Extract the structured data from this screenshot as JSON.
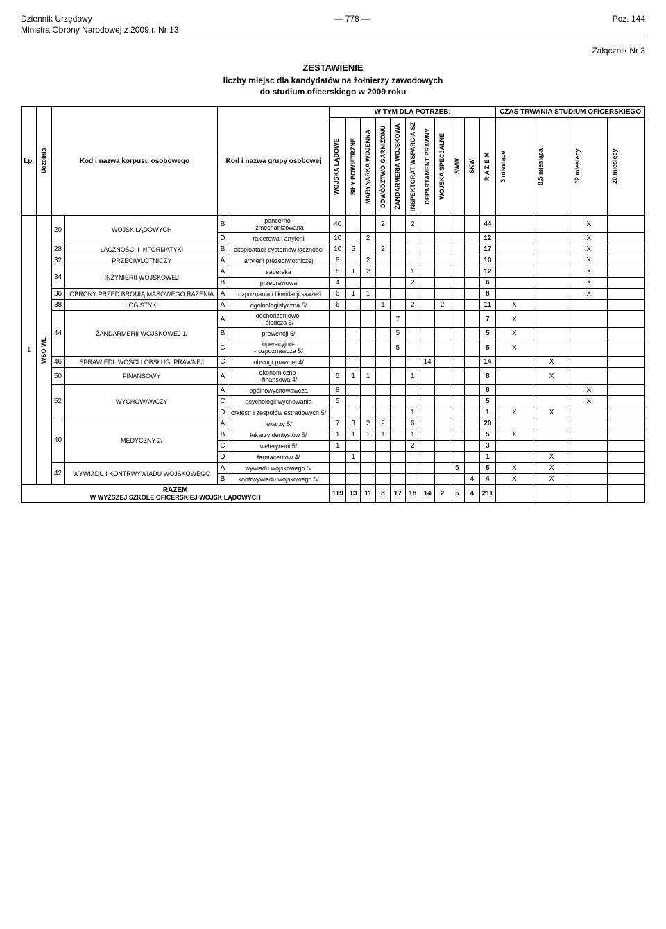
{
  "header": {
    "left1": "Dziennik Urzędowy",
    "left2": "Ministra Obrony Narodowej z 2009 r. Nr 13",
    "center": "— 778 —",
    "right": "Poz. 144"
  },
  "attachment": "Załącznik Nr 3",
  "title": "ZESTAWIENIE",
  "subtitle1": "liczby miejsc dla kandydatów na żołnierzy zawodowych",
  "subtitle2": "do studium oficerskiego w  2009 roku",
  "group_header1": "W  TYM  DLA  POTRZEB:",
  "group_header2": "CZAS TRWANIA STUDIUM OFICERSKIEGO",
  "col_labels": {
    "lp": "Lp.",
    "uczelnia": "Uczelnia",
    "korpus": "Kod i nazwa korpusu osobowego",
    "grupa": "Kod i nazwa grupy osobowej",
    "c1": "WOJSKA LĄDOWE",
    "c2": "SIŁY POWIETRZNE",
    "c3": "MARYNARKA WOJENNA",
    "c4": "DOWÓDZTWO GARNIZONU",
    "c5": "ŻANDARMERIA WOJSKOWA",
    "c6": "INSPEKTORAT WSPARCIA SZ",
    "c7": "DEPARTAMENT PRAWNY",
    "c8": "WOJSKA SPECJALNE",
    "c9": "SWW",
    "c10": "SKW",
    "c11": "R A Z E M",
    "d1": "3 miesiące",
    "d2": "8,5 miesiąca",
    "d3": "12 miesięcy",
    "d4": "20 miesięcy"
  },
  "lp_val": "1",
  "uczelnia_val": "WSO WL",
  "rows": [
    {
      "kcode": "20",
      "kname": "WOJSK LĄDOWYCH",
      "krows": 2,
      "gcode": "B",
      "gname": "pancerno-\n-zmechanizowana",
      "v": [
        "40",
        "",
        "",
        "2",
        "",
        "2",
        "",
        "",
        "",
        "",
        "44",
        "",
        "",
        "X",
        ""
      ]
    },
    {
      "gcode": "D",
      "gname": "rakietowa i artylerii",
      "v": [
        "10",
        "",
        "2",
        "",
        "",
        "",
        "",
        "",
        "",
        "",
        "12",
        "",
        "",
        "X",
        ""
      ]
    },
    {
      "kcode": "28",
      "kname": "ŁĄCZNOŚCI I INFORMATYKI",
      "krows": 1,
      "gcode": "B",
      "gname": "eksploatacji systemów łączności",
      "v": [
        "10",
        "5",
        "",
        "2",
        "",
        "",
        "",
        "",
        "",
        "",
        "17",
        "",
        "",
        "X",
        ""
      ]
    },
    {
      "kcode": "32",
      "kname": "PRZECIWLOTNICZY",
      "krows": 1,
      "gcode": "A",
      "gname": "artylerii prezeciwlotniczej",
      "v": [
        "8",
        "",
        "2",
        "",
        "",
        "",
        "",
        "",
        "",
        "",
        "10",
        "",
        "",
        "X",
        ""
      ]
    },
    {
      "kcode": "34",
      "kname": "INŻYNIERII WOJSKOWEJ",
      "krows": 2,
      "gcode": "A",
      "gname": "saperska",
      "v": [
        "8",
        "1",
        "2",
        "",
        "",
        "1",
        "",
        "",
        "",
        "",
        "12",
        "",
        "",
        "X",
        ""
      ]
    },
    {
      "gcode": "B",
      "gname": "przeprawowa",
      "v": [
        "4",
        "",
        "",
        "",
        "",
        "2",
        "",
        "",
        "",
        "",
        "6",
        "",
        "",
        "X",
        ""
      ]
    },
    {
      "kcode": "36",
      "kname": "OBRONY PRZED BRONIĄ MASOWEGO RAŻENIA",
      "krows": 1,
      "gcode": "A",
      "gname": "rozpoznania i likwidacji skażeń",
      "v": [
        "6",
        "1",
        "1",
        "",
        "",
        "",
        "",
        "",
        "",
        "",
        "8",
        "",
        "",
        "X",
        ""
      ]
    },
    {
      "kcode": "38",
      "kname": "LOGISTYKI",
      "krows": 1,
      "gcode": "A",
      "gname": "ogólnologistyczna  5/",
      "v": [
        "6",
        "",
        "",
        "1",
        "",
        "2",
        "",
        "2",
        "",
        "",
        "11",
        "X",
        "",
        "",
        ""
      ]
    },
    {
      "kcode": "44",
      "kname": "ŻANDARMERII WOJSKOWEJ 1/",
      "krows": 3,
      "gcode": "A",
      "gname": "dochodzeniowo-\n-śledcza  5/",
      "v": [
        "",
        "",
        "",
        "",
        "7",
        "",
        "",
        "",
        "",
        "",
        "7",
        "X",
        "",
        "",
        ""
      ]
    },
    {
      "gcode": "B",
      "gname": "prewencji  5/",
      "v": [
        "",
        "",
        "",
        "",
        "5",
        "",
        "",
        "",
        "",
        "",
        "5",
        "X",
        "",
        "",
        ""
      ]
    },
    {
      "gcode": "C",
      "gname": "operacyjno-\n-rozpoznawcza  5/",
      "v": [
        "",
        "",
        "",
        "",
        "5",
        "",
        "",
        "",
        "",
        "",
        "5",
        "X",
        "",
        "",
        ""
      ]
    },
    {
      "kcode": "46",
      "kname": "SPRAWIEDLIWOŚCI I OBSŁUGI PRAWNEJ",
      "krows": 1,
      "gcode": "C",
      "gname": "obsługi prawnej  4/",
      "v": [
        "",
        "",
        "",
        "",
        "",
        "",
        "14",
        "",
        "",
        "",
        "14",
        "",
        "X",
        "",
        ""
      ]
    },
    {
      "kcode": "50",
      "kname": "FINANSOWY",
      "krows": 1,
      "gcode": "A",
      "gname": "ekonomiczno-\n-finansowa  4/",
      "v": [
        "5",
        "1",
        "1",
        "",
        "",
        "1",
        "",
        "",
        "",
        "",
        "8",
        "",
        "X",
        "",
        ""
      ]
    },
    {
      "kcode": "52",
      "kname": "WYCHOWAWCZY",
      "krows": 3,
      "gcode": "A",
      "gname": "ogólnowychowawcza",
      "v": [
        "8",
        "",
        "",
        "",
        "",
        "",
        "",
        "",
        "",
        "",
        "8",
        "",
        "",
        "X",
        ""
      ]
    },
    {
      "gcode": "C",
      "gname": "psychologii wychowania",
      "v": [
        "5",
        "",
        "",
        "",
        "",
        "",
        "",
        "",
        "",
        "",
        "5",
        "",
        "",
        "X",
        ""
      ]
    },
    {
      "gcode": "D",
      "gname": "orkiestr i zespołów estradowych  5/",
      "v": [
        "",
        "",
        "",
        "",
        "",
        "1",
        "",
        "",
        "",
        "",
        "1",
        "X",
        "X",
        "",
        ""
      ]
    },
    {
      "kcode": "40",
      "kname": "MEDYCZNY 2/",
      "krows": 4,
      "gcode": "A",
      "gname": "lekarzy 5/",
      "v": [
        "7",
        "3",
        "2",
        "2",
        "",
        "6",
        "",
        "",
        "",
        "",
        "20",
        "",
        "",
        "",
        ""
      ]
    },
    {
      "gcode": "B",
      "gname": "lekarzy dentystów  5/",
      "v": [
        "1",
        "1",
        "1",
        "1",
        "",
        "1",
        "",
        "",
        "",
        "",
        "5",
        "X",
        "",
        "",
        ""
      ]
    },
    {
      "gcode": "C",
      "gname": "weterynarii  5/",
      "v": [
        "1",
        "",
        "",
        "",
        "",
        "2",
        "",
        "",
        "",
        "",
        "3",
        "",
        "",
        "",
        ""
      ]
    },
    {
      "gcode": "D",
      "gname": "farmaceutów  4/",
      "v": [
        "",
        "1",
        "",
        "",
        "",
        "",
        "",
        "",
        "",
        "",
        "1",
        "",
        "X",
        "",
        ""
      ]
    },
    {
      "kcode": "42",
      "kname": "WYWIADU I KONTRWYWIADU WOJSKOWEGO",
      "krows": 2,
      "gcode": "A",
      "gname": "wywiadu wojskowego  5/",
      "v": [
        "",
        "",
        "",
        "",
        "",
        "",
        "",
        "",
        "5",
        "",
        "5",
        "X",
        "X",
        "",
        ""
      ]
    },
    {
      "gcode": "B",
      "gname": "kontrwywiadu wojskowego  5/",
      "v": [
        "",
        "",
        "",
        "",
        "",
        "",
        "",
        "",
        "",
        "4",
        "4",
        "X",
        "X",
        "",
        ""
      ]
    }
  ],
  "razem": {
    "label": "RAZEM",
    "sublabel": "W WYŻSZEJ SZKOLE OFICERSKIEJ WOJSK LĄDOWYCH",
    "v": [
      "119",
      "13",
      "11",
      "8",
      "17",
      "18",
      "14",
      "2",
      "5",
      "4",
      "211",
      "",
      "",
      "",
      ""
    ]
  }
}
